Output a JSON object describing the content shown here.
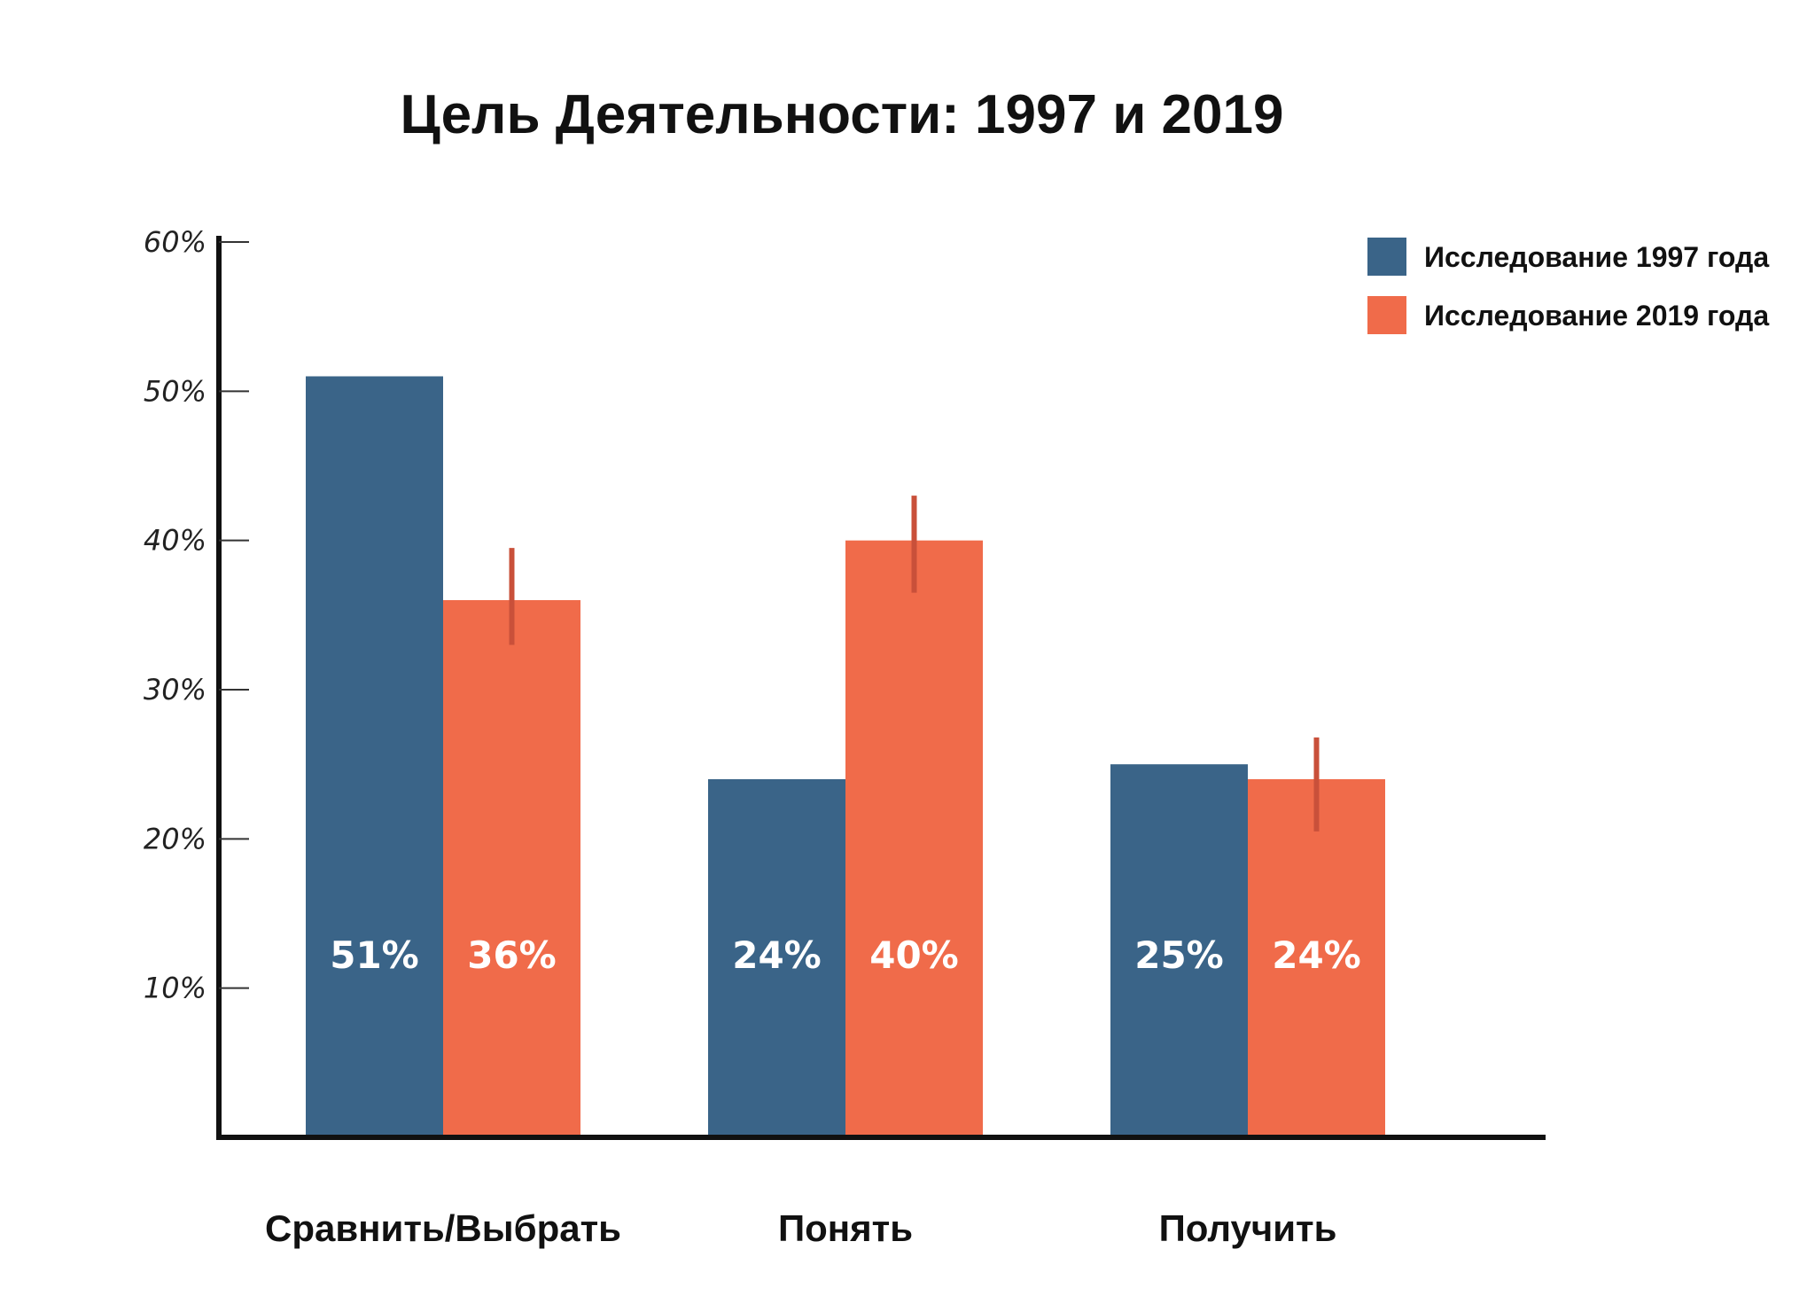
{
  "chart_data": {
    "type": "bar",
    "title": "Цель Деятельности: 1997 и 2019",
    "xlabel": "",
    "ylabel": "",
    "ylim": [
      0,
      60
    ],
    "yticks": [
      10,
      20,
      30,
      40,
      50,
      60
    ],
    "ytick_labels": [
      "10%",
      "20%",
      "30%",
      "40%",
      "50%",
      "60%"
    ],
    "grid": false,
    "legend_position": "top-right",
    "categories": [
      "Сравнить/Выбрать",
      "Понять",
      "Получить"
    ],
    "series": [
      {
        "name": "Исследование 1997 года",
        "color": "#3A6488",
        "values": [
          51,
          24,
          25
        ],
        "value_labels": [
          "51%",
          "24%",
          "25%"
        ]
      },
      {
        "name": "Исследование 2019 года",
        "color": "#F06B4A",
        "values": [
          36,
          40,
          24
        ],
        "value_labels": [
          "36%",
          "40%",
          "24%"
        ],
        "error_bars": [
          [
            33,
            39.5
          ],
          [
            36.5,
            43
          ],
          [
            20.5,
            26.8
          ]
        ],
        "error_color": "#C9503A"
      }
    ]
  }
}
